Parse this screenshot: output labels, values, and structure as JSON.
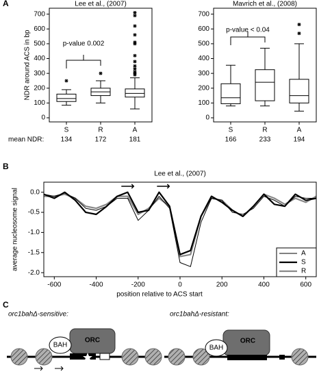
{
  "panel_labels": [
    "A",
    "B",
    "C"
  ],
  "chart_data": [
    {
      "type": "box",
      "title": "Lee et al., (2007)",
      "ylabel": "NDR around ACS in bp",
      "categories": [
        "S",
        "R",
        "A"
      ],
      "boxes": [
        {
          "whisker_low": 85,
          "q1": 110,
          "median": 130,
          "q3": 160,
          "whisker_high": 190,
          "outliers": [
            250
          ]
        },
        {
          "whisker_low": 100,
          "q1": 150,
          "median": 175,
          "q3": 200,
          "whisker_high": 250,
          "outliers": [
            300
          ]
        },
        {
          "whisker_low": 60,
          "q1": 140,
          "median": 165,
          "q3": 195,
          "whisker_high": 270,
          "outliers": [
            290,
            300,
            310,
            330,
            350,
            380,
            420,
            500,
            510,
            560,
            620,
            690,
            710
          ]
        }
      ],
      "annotation": "p-value 0.002",
      "footer_label": "mean NDR:",
      "means": [
        134,
        172,
        181
      ],
      "ylim": [
        0,
        740
      ],
      "yticks": [
        0,
        100,
        200,
        300,
        400,
        500,
        600,
        700
      ]
    },
    {
      "type": "box",
      "title": "Mavrich et al., (2008)",
      "categories": [
        "S",
        "R",
        "A"
      ],
      "boxes": [
        {
          "whisker_low": 80,
          "q1": 95,
          "median": 135,
          "q3": 230,
          "whisker_high": 355,
          "outliers": []
        },
        {
          "whisker_low": 80,
          "q1": 115,
          "median": 240,
          "q3": 325,
          "whisker_high": 470,
          "outliers": []
        },
        {
          "whisker_low": 45,
          "q1": 100,
          "median": 150,
          "q3": 260,
          "whisker_high": 500,
          "outliers": [
            570,
            630
          ]
        }
      ],
      "annotation": "p-value < 0.04",
      "means": [
        166,
        233,
        194
      ],
      "ylim": [
        0,
        740
      ],
      "yticks": [
        0,
        100,
        200,
        300,
        400,
        500,
        600,
        700
      ]
    },
    {
      "type": "line",
      "title": "Lee et al., (2007)",
      "xlabel": "position relative to ACS start",
      "ylabel": "average nucleosome signal",
      "x": [
        -650,
        -600,
        -550,
        -500,
        -450,
        -400,
        -350,
        -300,
        -250,
        -200,
        -150,
        -100,
        -50,
        0,
        50,
        100,
        150,
        200,
        250,
        300,
        350,
        400,
        450,
        500,
        550,
        600,
        650
      ],
      "series": [
        {
          "name": "A",
          "color": "#000000",
          "linewidth": 1,
          "values": [
            -0.05,
            -0.1,
            -0.02,
            -0.15,
            -0.4,
            -0.45,
            -0.35,
            -0.15,
            -0.15,
            -0.7,
            -0.45,
            -0.1,
            -0.4,
            -1.75,
            -1.85,
            -0.75,
            -0.15,
            -0.2,
            -0.5,
            -0.55,
            -0.4,
            -0.1,
            -0.2,
            -0.35,
            -0.1,
            -0.15,
            -0.15
          ]
        },
        {
          "name": "S",
          "color": "#000000",
          "linewidth": 2.2,
          "values": [
            -0.05,
            -0.15,
            0.0,
            -0.2,
            -0.5,
            -0.55,
            -0.35,
            -0.1,
            0.0,
            -0.5,
            -0.45,
            0.0,
            -0.35,
            -1.55,
            -1.45,
            -0.6,
            -0.1,
            -0.25,
            -0.45,
            -0.6,
            -0.35,
            -0.05,
            -0.3,
            -0.35,
            -0.05,
            -0.2,
            -0.15
          ]
        },
        {
          "name": "R",
          "color": "#888888",
          "linewidth": 2.2,
          "values": [
            -0.1,
            -0.1,
            -0.05,
            -0.15,
            -0.35,
            -0.4,
            -0.3,
            -0.1,
            -0.1,
            -0.55,
            -0.4,
            -0.15,
            -0.35,
            -1.6,
            -1.55,
            -0.6,
            -0.15,
            -0.2,
            -0.45,
            -0.6,
            -0.35,
            -0.05,
            -0.15,
            -0.3,
            -0.15,
            -0.25,
            -0.1
          ]
        }
      ],
      "xlim": [
        -650,
        650
      ],
      "xticks": [
        -600,
        -400,
        -200,
        0,
        200,
        400,
        600
      ],
      "ylim": [
        -2.1,
        0.25
      ],
      "yticks": [
        {
          "value": 0,
          "label": "0.0"
        },
        -0.5,
        {
          "value": -1,
          "label": "-1.0"
        },
        -1.5,
        {
          "value": -2,
          "label": "-2.0"
        }
      ],
      "legend": "lower right"
    }
  ],
  "diagram": {
    "sensitive": {
      "label": "orc1bahΔ-sensitive:",
      "bah": "BAH",
      "orc": "ORC"
    },
    "resistant": {
      "label": "orc1bahΔ-resistant:",
      "bah": "BAH",
      "orc": "ORC"
    }
  }
}
